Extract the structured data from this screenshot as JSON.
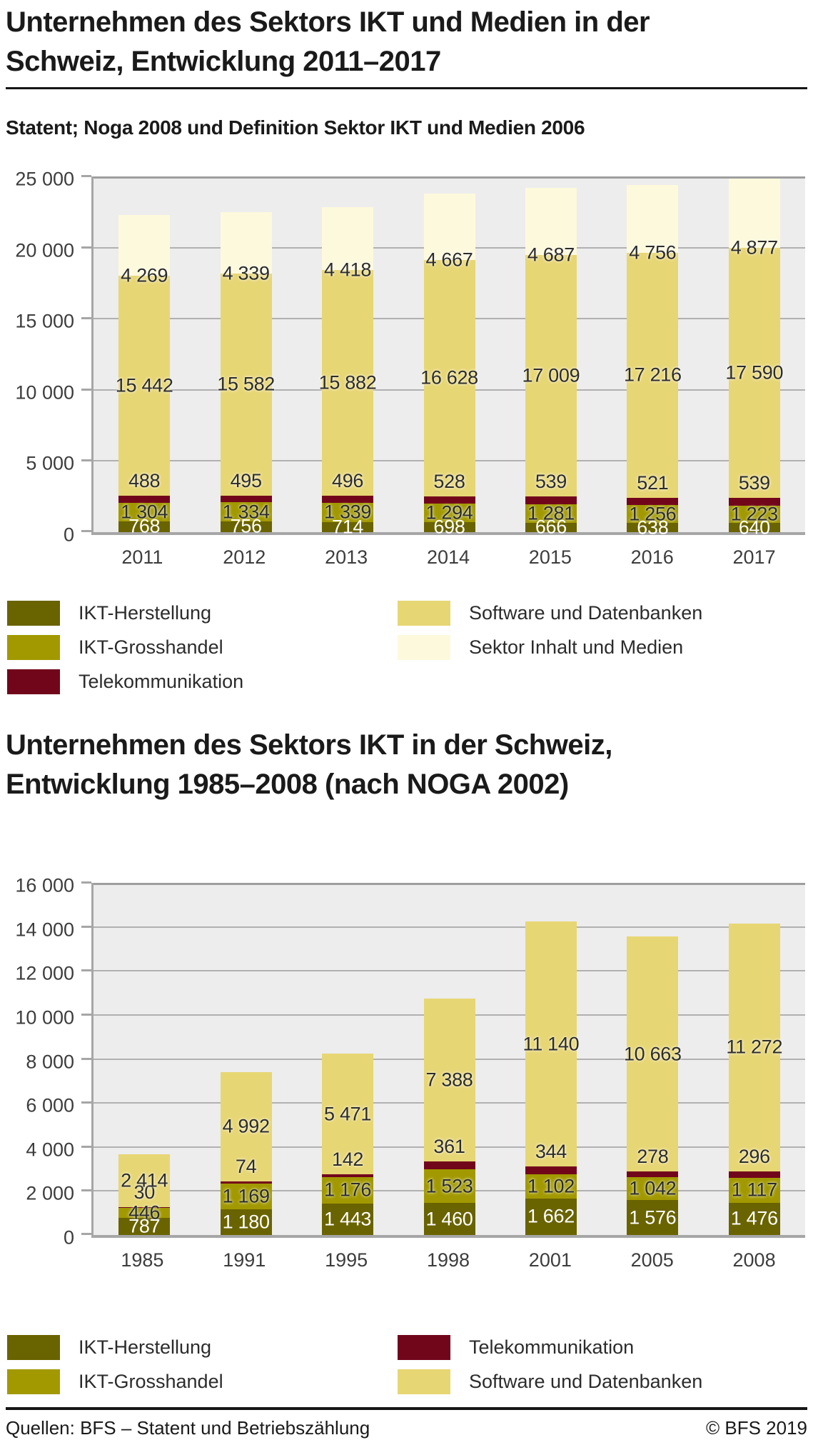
{
  "page": {
    "title": "Unternehmen des Sektors IKT und Medien in der Schweiz, Entwicklung 2011–2017"
  },
  "palette": {
    "herstellung": "#696300",
    "grosshandel": "#a29900",
    "telekom": "#71061b",
    "software": "#e7d674",
    "inhalt": "#fdf9dc"
  },
  "chart_data": [
    {
      "type": "bar",
      "stacked": true,
      "subtitle": "Statent; Noga 2008 und Definition Sektor IKT und Medien 2006",
      "categories": [
        "2011",
        "2012",
        "2013",
        "2014",
        "2015",
        "2016",
        "2017"
      ],
      "series": [
        {
          "name": "IKT-Herstellung",
          "color_key": "herstellung",
          "label_style": "white-center",
          "values": [
            768,
            756,
            714,
            698,
            666,
            638,
            640
          ]
        },
        {
          "name": "IKT-Grosshandel",
          "color_key": "grosshandel",
          "label_style": "center",
          "values": [
            1304,
            1334,
            1339,
            1294,
            1281,
            1256,
            1223
          ]
        },
        {
          "name": "Telekommunikation",
          "color_key": "telekom",
          "label_style": "above",
          "values": [
            488,
            495,
            496,
            528,
            539,
            521,
            539
          ]
        },
        {
          "name": "Software und Datenbanken",
          "color_key": "software",
          "label_style": "center",
          "values": [
            15442,
            15582,
            15882,
            16628,
            17009,
            17216,
            17590
          ]
        },
        {
          "name": "Sektor Inhalt und Medien",
          "color_key": "inhalt",
          "label_style": "boundary",
          "values": [
            4269,
            4339,
            4418,
            4667,
            4687,
            4756,
            4877
          ]
        }
      ],
      "ylim": [
        0,
        25000
      ],
      "y_tick_step": 5000,
      "grid": true,
      "legend_position": "below",
      "legend_columns": [
        [
          {
            "label": "IKT-Herstellung",
            "color_key": "herstellung"
          },
          {
            "label": "IKT-Grosshandel",
            "color_key": "grosshandel"
          },
          {
            "label": "Telekommunikation",
            "color_key": "telekom"
          }
        ],
        [
          {
            "label": "Software und Datenbanken",
            "color_key": "software"
          },
          {
            "label": "Sektor Inhalt und Medien",
            "color_key": "inhalt"
          }
        ]
      ]
    },
    {
      "type": "bar",
      "stacked": true,
      "title": "Unternehmen des Sektors IKT in der Schweiz, Entwicklung 1985–2008 (nach NOGA 2002)",
      "categories": [
        "1985",
        "1991",
        "1995",
        "1998",
        "2001",
        "2005",
        "2008"
      ],
      "series": [
        {
          "name": "IKT-Herstellung",
          "color_key": "herstellung",
          "label_style": "white-center",
          "values": [
            787,
            1180,
            1443,
            1460,
            1662,
            1576,
            1476
          ]
        },
        {
          "name": "IKT-Grosshandel",
          "color_key": "grosshandel",
          "label_style": "center",
          "values": [
            446,
            1169,
            1176,
            1523,
            1102,
            1042,
            1117
          ]
        },
        {
          "name": "Telekommunikation",
          "color_key": "telekom",
          "label_style": "above",
          "values": [
            30,
            74,
            142,
            361,
            344,
            278,
            296
          ]
        },
        {
          "name": "Software und Datenbanken",
          "color_key": "software",
          "label_style": "center",
          "values": [
            2414,
            4992,
            5471,
            7388,
            11140,
            10663,
            11272
          ]
        }
      ],
      "ylim": [
        0,
        16000
      ],
      "y_tick_step": 2000,
      "grid": true,
      "legend_position": "below",
      "legend_columns": [
        [
          {
            "label": "IKT-Herstellung",
            "color_key": "herstellung"
          },
          {
            "label": "IKT-Grosshandel",
            "color_key": "grosshandel"
          }
        ],
        [
          {
            "label": "Telekommunikation",
            "color_key": "telekom"
          },
          {
            "label": "Software und Datenbanken",
            "color_key": "software"
          }
        ]
      ]
    }
  ],
  "footer": {
    "source": "Quellen: BFS – Statent und Betriebszählung",
    "copyright": "© BFS 2019"
  }
}
